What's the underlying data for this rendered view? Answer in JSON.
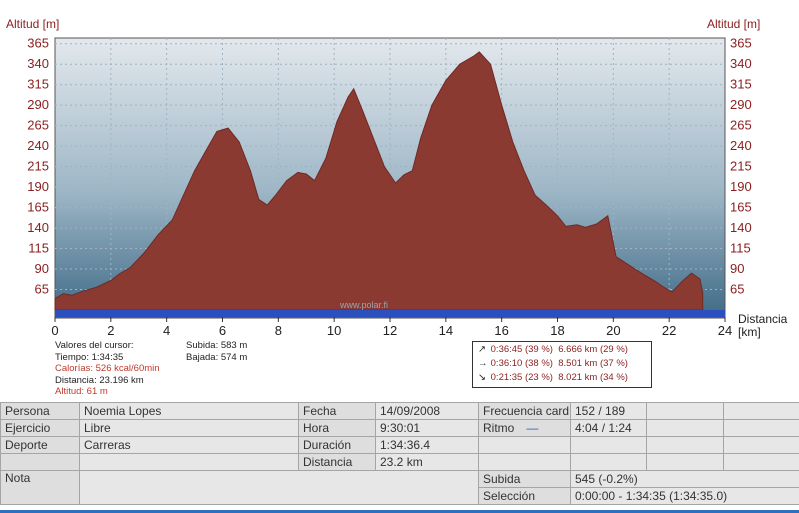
{
  "chart_data": {
    "type": "area",
    "ylabel": "Altitud [m]",
    "xlabel_line1": "Distancia",
    "xlabel_line2": "[km]",
    "xlim": [
      0,
      24
    ],
    "ylim": [
      40,
      372
    ],
    "x_ticks": [
      "0",
      "2",
      "4",
      "6",
      "8",
      "10",
      "12",
      "14",
      "16",
      "18",
      "20",
      "22",
      "24"
    ],
    "y_ticks": [
      "365",
      "340",
      "315",
      "290",
      "265",
      "240",
      "215",
      "190",
      "165",
      "140",
      "115",
      "90",
      "65"
    ],
    "fill_color": "#8b3a32",
    "base_color": "#2a4fbf",
    "x": [
      0,
      0.3,
      0.6,
      1,
      1.5,
      2,
      2.3,
      2.7,
      3.2,
      3.7,
      4.2,
      4.6,
      5,
      5.5,
      5.8,
      6.2,
      6.6,
      7,
      7.3,
      7.6,
      7.9,
      8.3,
      8.7,
      9,
      9.3,
      9.7,
      10.1,
      10.5,
      10.7,
      11,
      11.4,
      11.8,
      12.2,
      12.5,
      12.8,
      13.1,
      13.5,
      14,
      14.5,
      15,
      15.2,
      15.6,
      16,
      16.4,
      16.8,
      17.2,
      17.6,
      18,
      18.3,
      18.7,
      19,
      19.4,
      19.8,
      20.1,
      20.5,
      21,
      21.5,
      21.8,
      22.1,
      22.5,
      22.8,
      23.1,
      23.2
    ],
    "y": [
      54,
      60,
      58,
      63,
      68,
      76,
      84,
      92,
      110,
      132,
      150,
      180,
      210,
      240,
      258,
      262,
      245,
      210,
      175,
      168,
      180,
      198,
      208,
      206,
      198,
      225,
      270,
      300,
      310,
      285,
      250,
      215,
      195,
      205,
      210,
      250,
      290,
      320,
      340,
      350,
      355,
      340,
      290,
      245,
      210,
      180,
      168,
      155,
      142,
      144,
      141,
      145,
      155,
      105,
      96,
      85,
      75,
      68,
      62,
      76,
      85,
      78,
      61
    ]
  },
  "watermark": "www.polar.fi",
  "cursor": {
    "title": "Valores del cursor:",
    "tiempo": "Tiempo: 1:34:35",
    "calorias": "Calorías: 526 kcal/60min",
    "distancia": "Distancia: 23.196 km",
    "altitud": "Altitud: 61 m",
    "subida": "Subida: 583 m",
    "bajada": "Bajada: 574 m"
  },
  "splits": [
    {
      "arrow": "↗",
      "time": "0:36:45",
      "time_pct": "(39 %)",
      "dist": "6.666 km",
      "dist_pct": "(29 %)"
    },
    {
      "arrow": "→",
      "time": "0:36:10",
      "time_pct": "(38 %)",
      "dist": "8.501 km",
      "dist_pct": "(37 %)"
    },
    {
      "arrow": "↘",
      "time": "0:21:35",
      "time_pct": "(23 %)",
      "dist": "8.021 km",
      "dist_pct": "(34 %)"
    }
  ],
  "info": {
    "persona_label": "Persona",
    "persona": "Noemia Lopes",
    "ejercicio_label": "Ejercicio",
    "ejercicio": "Libre",
    "deporte_label": "Deporte",
    "deporte": "Carreras",
    "nota_label": "Nota",
    "fecha_label": "Fecha",
    "fecha": "14/09/2008",
    "hora_label": "Hora",
    "hora": "9:30:01",
    "duracion_label": "Duración",
    "duracion": "1:34:36.4",
    "distancia_label": "Distancia",
    "distancia": "23.2 km",
    "frecuencia_label": "Frecuencia card",
    "frecuencia": "152 / 189",
    "ritmo_label": "Ritmo",
    "ritmo_mark": "—",
    "ritmo": "4:04 / 1:24",
    "subida_label": "Subida",
    "subida": "545 (-0.2%)",
    "seleccion_label": "Selección",
    "seleccion": "0:00:00 - 1:34:35 (1:34:35.0)"
  }
}
